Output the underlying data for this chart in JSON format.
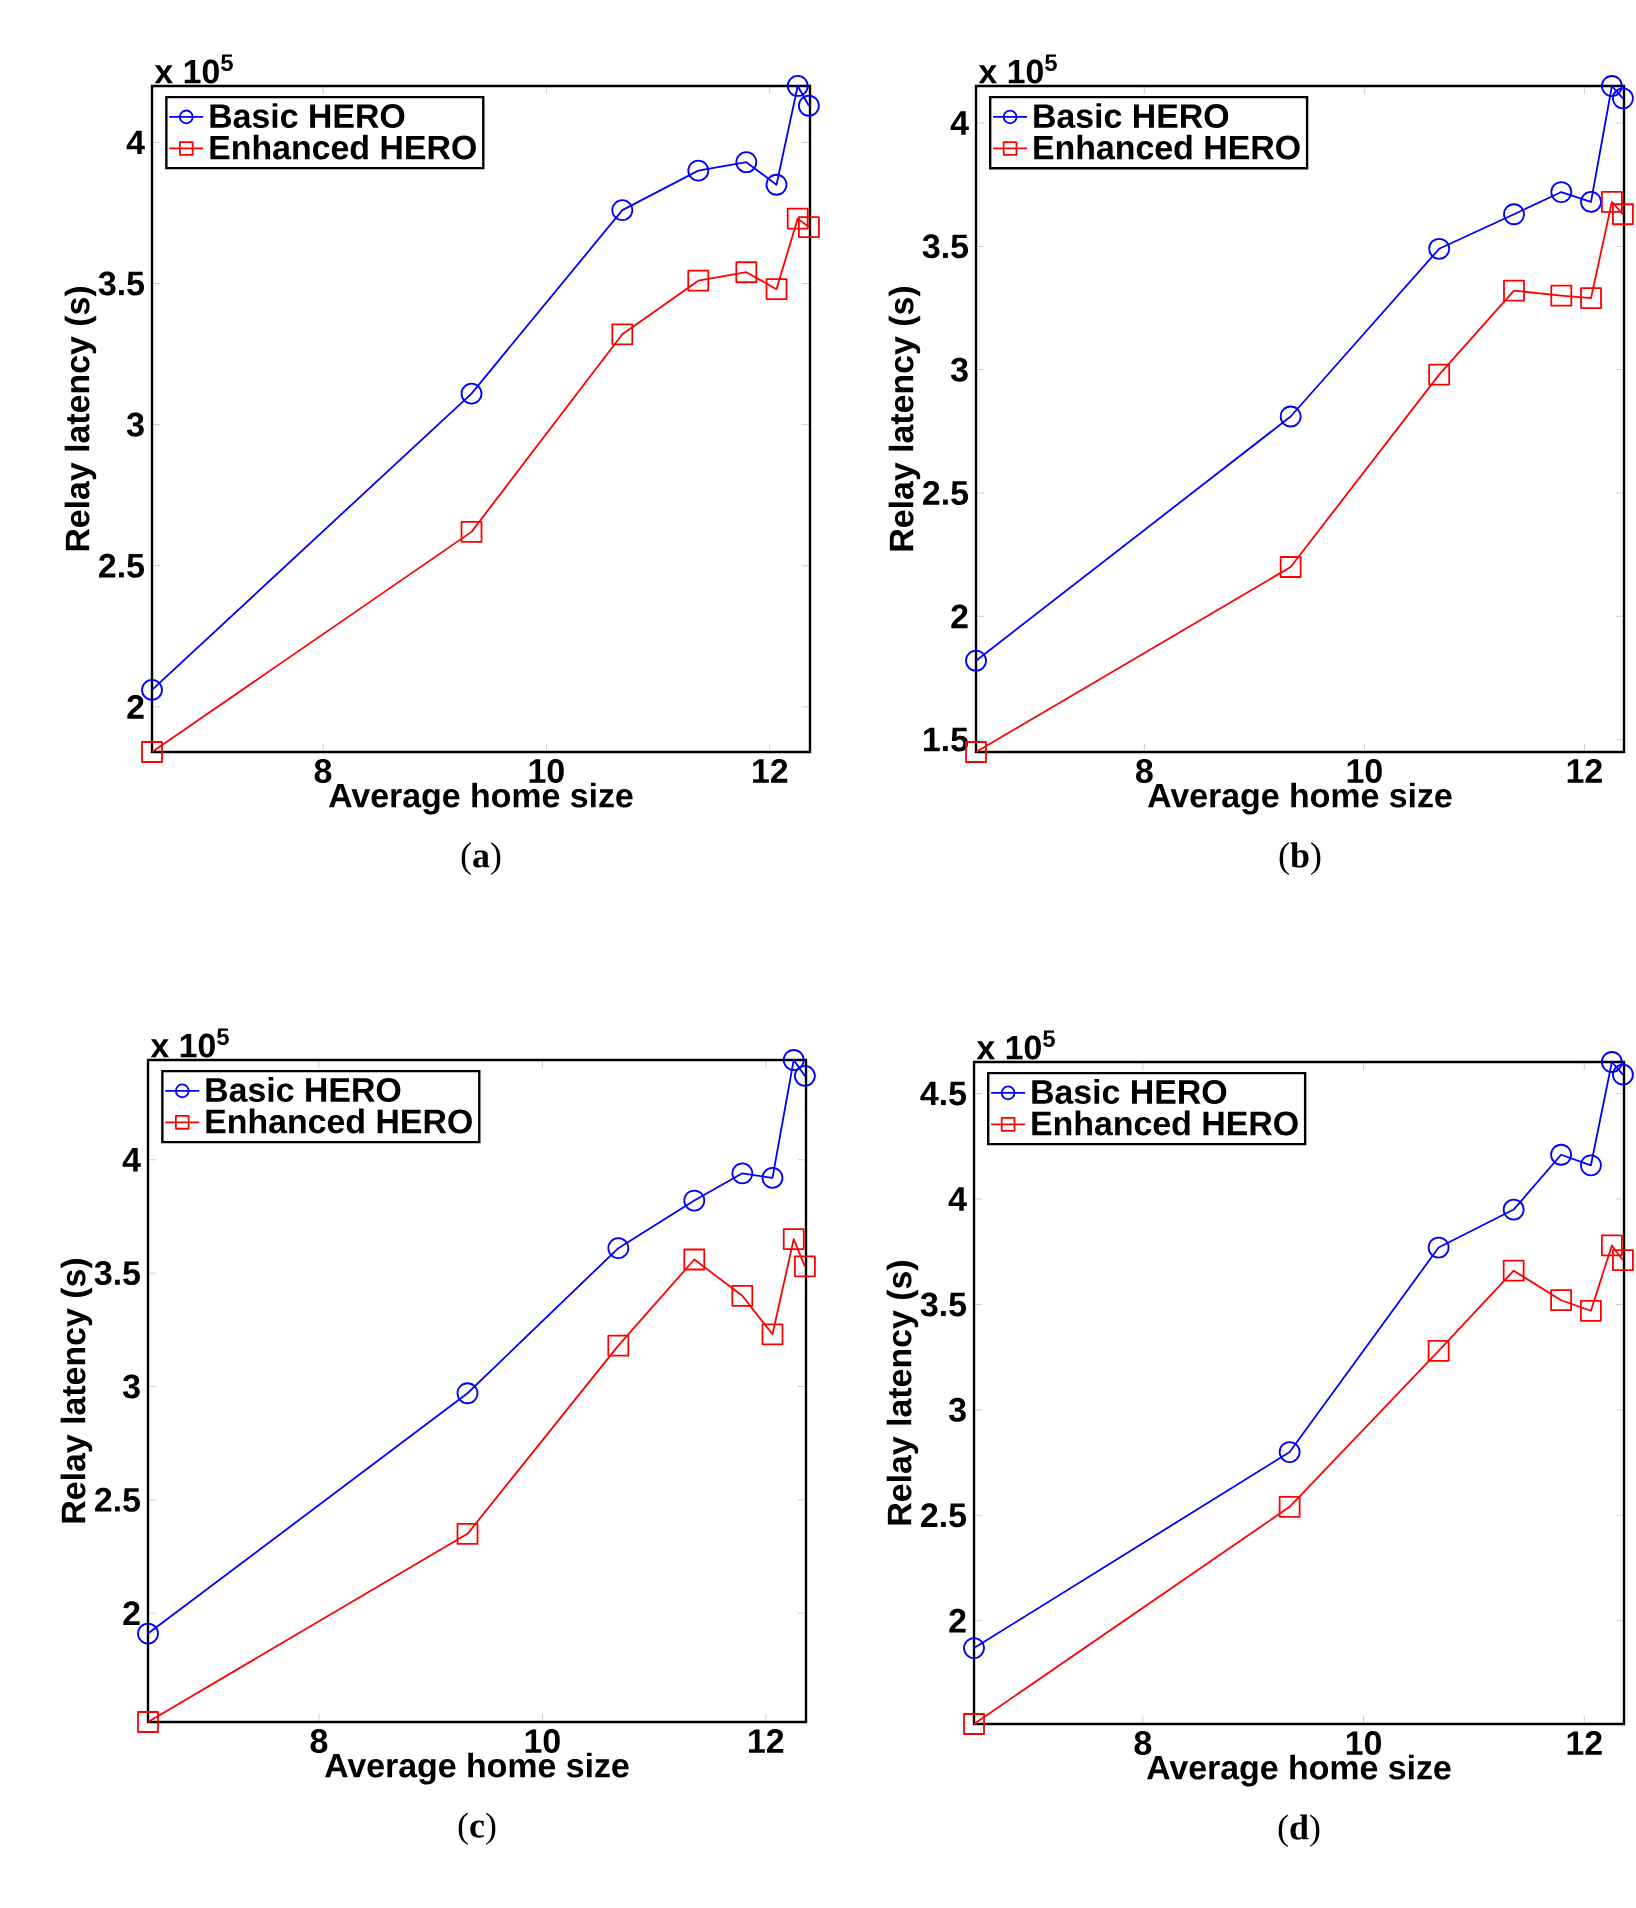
{
  "chart_data": [
    {
      "type": "line",
      "xlabel": "Average home size",
      "ylabel": "Relay latency (s)",
      "annotations": [
        "x 10$^{5}$",
        "(**a**)"
      ],
      "x": [
        6.47,
        9.33,
        10.68,
        11.36,
        11.79,
        12.06,
        12.25,
        12.35
      ],
      "xlim": [
        6.47,
        12.36
      ],
      "xticks": [
        8,
        10,
        12
      ],
      "ylim": [
        1.84,
        4.2
      ],
      "yticks": [
        2,
        2.5,
        3,
        3.5,
        4
      ],
      "legend": "top left",
      "grid": false,
      "line_style": "solid",
      "series": [
        {
          "name": "Basic HERO",
          "color": "#0000ff",
          "marker": "circle",
          "values": [
            2.06,
            3.11,
            3.76,
            3.9,
            3.93,
            3.85,
            4.2,
            4.13
          ]
        },
        {
          "name": "Enhanced HERO",
          "color": "#ff0000",
          "marker": "square",
          "values": [
            1.84,
            2.62,
            3.32,
            3.51,
            3.54,
            3.48,
            3.73,
            3.7
          ]
        }
      ]
    },
    {
      "type": "line",
      "xlabel": "Average home size",
      "ylabel": "Relay latency (s)",
      "annotations": [
        "x 10$^{5}$",
        "(**b**)"
      ],
      "x": [
        6.47,
        9.33,
        10.68,
        11.36,
        11.79,
        12.06,
        12.25,
        12.35
      ],
      "xlim": [
        6.47,
        12.36
      ],
      "xticks": [
        8,
        10,
        12
      ],
      "ylim": [
        1.45,
        4.15
      ],
      "yticks": [
        1.5,
        2,
        2.5,
        3,
        3.5,
        4
      ],
      "legend": "top left",
      "grid": false,
      "line_style": "solid",
      "series": [
        {
          "name": "Basic HERO",
          "color": "#0000ff",
          "marker": "circle",
          "values": [
            1.82,
            2.81,
            3.49,
            3.63,
            3.72,
            3.68,
            4.15,
            4.1
          ]
        },
        {
          "name": "Enhanced HERO",
          "color": "#ff0000",
          "marker": "square",
          "values": [
            1.45,
            2.2,
            2.98,
            3.32,
            3.3,
            3.29,
            3.68,
            3.63
          ]
        }
      ]
    },
    {
      "type": "line",
      "xlabel": "Average home size",
      "ylabel": "Relay latency (s)",
      "annotations": [
        "x 10$^{5}$",
        "(**c**)"
      ],
      "x": [
        6.47,
        9.33,
        10.68,
        11.36,
        11.79,
        12.06,
        12.25,
        12.35
      ],
      "xlim": [
        6.47,
        12.36
      ],
      "xticks": [
        8,
        10,
        12
      ],
      "ylim": [
        1.52,
        4.44
      ],
      "yticks": [
        2,
        2.5,
        3,
        3.5,
        4
      ],
      "legend": "top left",
      "grid": false,
      "line_style": "solid",
      "series": [
        {
          "name": "Basic HERO",
          "color": "#0000ff",
          "marker": "circle",
          "values": [
            1.91,
            2.97,
            3.61,
            3.82,
            3.94,
            3.92,
            4.44,
            4.37
          ]
        },
        {
          "name": "Enhanced HERO",
          "color": "#ff0000",
          "marker": "square",
          "values": [
            1.52,
            2.35,
            3.18,
            3.56,
            3.4,
            3.23,
            3.65,
            3.53
          ]
        }
      ]
    },
    {
      "type": "line",
      "xlabel": "Average home size",
      "ylabel": "Relay latency (s)",
      "annotations": [
        "x 10$^{5}$",
        "(**d**)"
      ],
      "x": [
        6.47,
        9.33,
        10.68,
        11.36,
        11.79,
        12.06,
        12.25,
        12.35
      ],
      "xlim": [
        6.47,
        12.36
      ],
      "xticks": [
        8,
        10,
        12
      ],
      "ylim": [
        1.51,
        4.65
      ],
      "yticks": [
        2,
        2.5,
        3,
        3.5,
        4,
        4.5
      ],
      "legend": "top left",
      "grid": false,
      "line_style": "solid",
      "series": [
        {
          "name": "Basic HERO",
          "color": "#0000ff",
          "marker": "circle",
          "values": [
            1.87,
            2.8,
            3.77,
            3.95,
            4.21,
            4.16,
            4.65,
            4.59
          ]
        },
        {
          "name": "Enhanced HERO",
          "color": "#ff0000",
          "marker": "square",
          "values": [
            1.51,
            2.54,
            3.28,
            3.66,
            3.52,
            3.47,
            3.78,
            3.71
          ]
        }
      ]
    }
  ]
}
